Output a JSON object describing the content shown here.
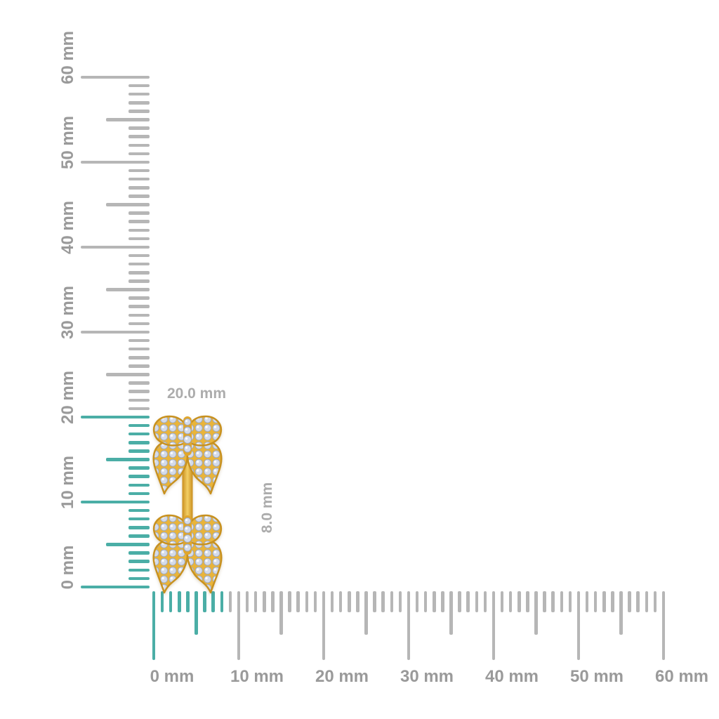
{
  "annotations": {
    "height_label": "20.0 mm",
    "width_label": "8.0 mm"
  },
  "rulers": {
    "unit": "mm",
    "vertical": {
      "labels": [
        "0 mm",
        "10 mm",
        "20 mm",
        "30 mm",
        "40 mm",
        "50 mm",
        "60 mm"
      ],
      "highlight_range_mm": [
        0,
        20
      ]
    },
    "horizontal": {
      "labels": [
        "0 mm",
        "10 mm",
        "20 mm",
        "30 mm",
        "40 mm",
        "50 mm",
        "60 mm"
      ],
      "highlight_range_mm": [
        0,
        8
      ]
    }
  },
  "colors": {
    "tick_gray": "#B6B6B6",
    "highlight_teal": "#4BAEA6",
    "ruler_label_gray": "#9A9A9A",
    "annotation_gray": "#ACACAC",
    "gold": "#E9B43A",
    "gold_dark": "#C8911F",
    "diamond": "#D4DBEA"
  }
}
